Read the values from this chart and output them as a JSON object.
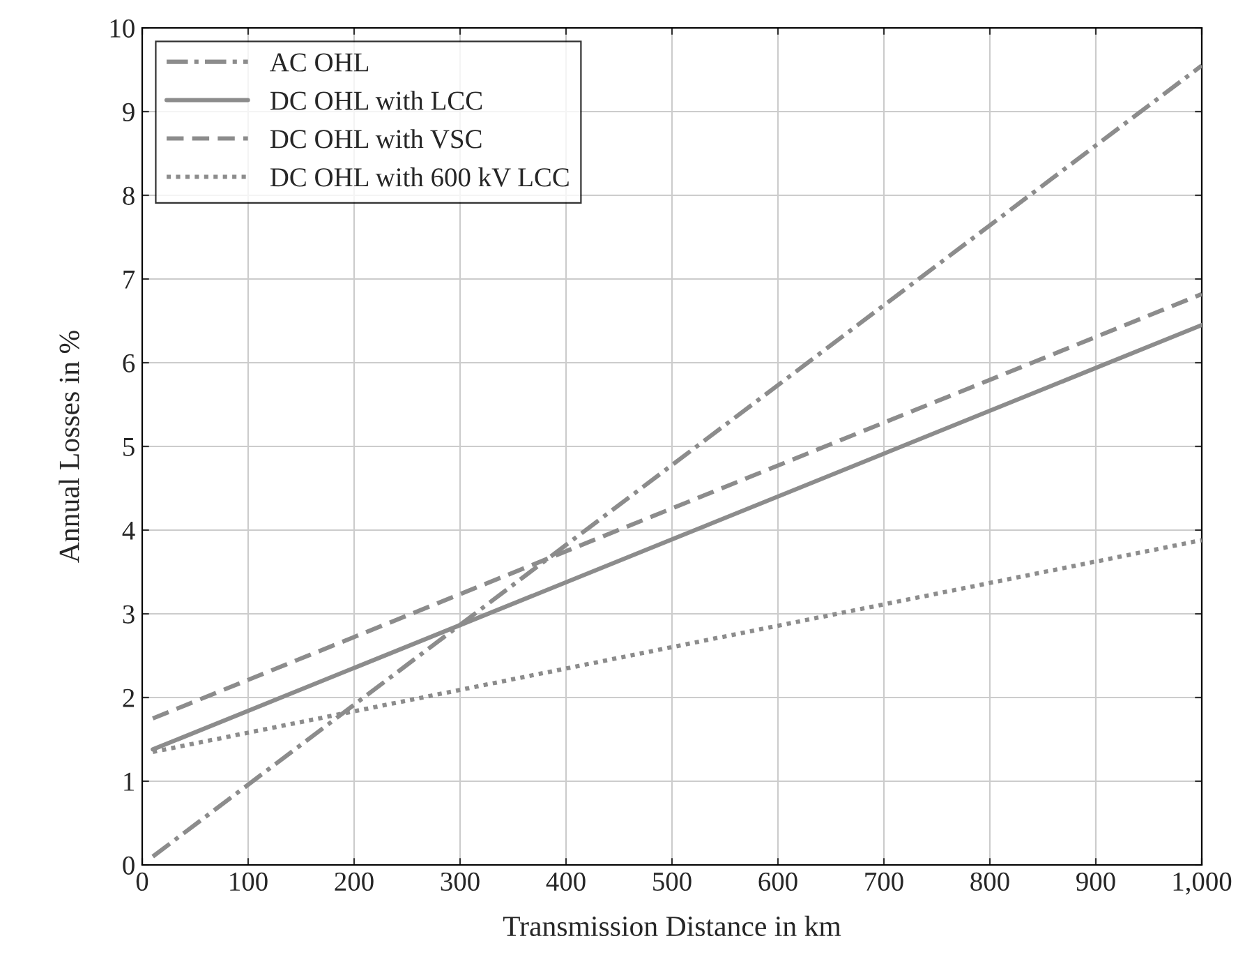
{
  "chart_data": {
    "type": "line",
    "xlabel": "Transmission Distance in km",
    "ylabel": "Annual Losses in %",
    "x": [
      10,
      1000
    ],
    "series": [
      {
        "name": "AC OHL",
        "color": "#8c8c8c",
        "line_style": "dashdot",
        "values": [
          0.1,
          9.55
        ]
      },
      {
        "name": "DC OHL with LCC",
        "color": "#8c8c8c",
        "line_style": "solid",
        "values": [
          1.38,
          6.45
        ]
      },
      {
        "name": "DC OHL with VSC",
        "color": "#8c8c8c",
        "line_style": "dashed",
        "values": [
          1.75,
          6.82
        ]
      },
      {
        "name": "DC OHL with 600 kV LCC",
        "color": "#8c8c8c",
        "line_style": "dotted",
        "values": [
          1.35,
          3.88
        ]
      }
    ],
    "xlim": [
      0,
      1000
    ],
    "xticks": [
      0,
      100,
      200,
      300,
      400,
      500,
      600,
      700,
      800,
      900,
      {
        "value": 1000,
        "label": "1,000"
      }
    ],
    "ylim": [
      0,
      10
    ],
    "yticks": [
      0,
      1,
      2,
      3,
      4,
      5,
      6,
      7,
      8,
      9,
      10
    ],
    "grid": true,
    "legend": "top left"
  }
}
